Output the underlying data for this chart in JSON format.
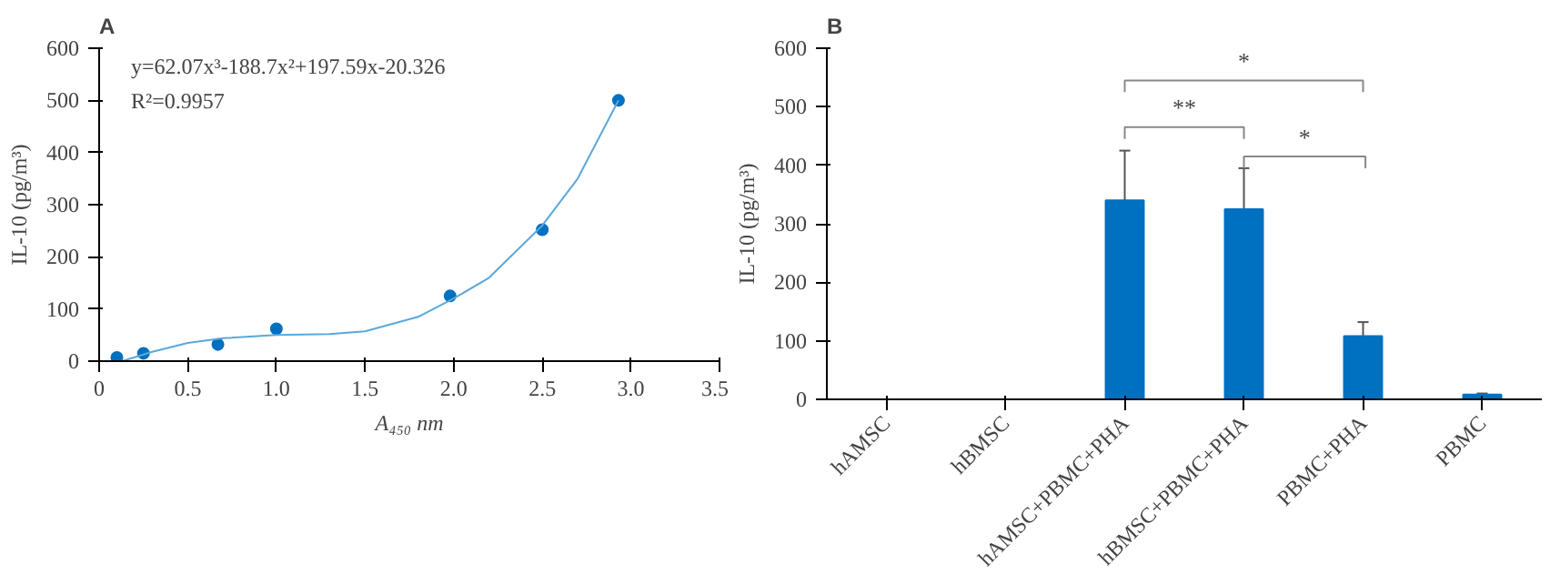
{
  "chart_data": [
    {
      "type": "scatter",
      "title": "A",
      "xlabel": "A₄₅₀ nm",
      "ylabel": "IL-10 (pg/m³)",
      "grid": false,
      "xlim": [
        0,
        3.5
      ],
      "xticks": [
        0,
        0.5,
        {
          "value": 1,
          "label": "1.0"
        },
        1.5,
        {
          "value": 2,
          "label": "2.0"
        },
        2.5,
        {
          "value": 3,
          "label": "3.0"
        },
        3.5
      ],
      "ylim": [
        0,
        600
      ],
      "yticks": [
        0,
        100,
        200,
        300,
        400,
        500,
        600
      ],
      "annotations": [
        "y=62.07x³-188.7x²+197.59x-20.326",
        "R²=0.9957"
      ],
      "series": [
        {
          "type": "scatter",
          "marker": "circle",
          "color": "#0070c0",
          "x": [
            0.1,
            0.25,
            0.67,
            1.0,
            1.98,
            2.5,
            2.93
          ],
          "values": [
            7,
            15,
            32,
            62,
            125,
            252,
            500
          ]
        },
        {
          "type": "line",
          "marker": "none",
          "color": "#5aa8dc",
          "x": [
            0.13,
            0.3,
            0.5,
            0.7,
            1.0,
            1.3,
            1.5,
            1.8,
            2.0,
            2.2,
            2.5,
            2.7,
            2.93
          ],
          "values": [
            0,
            18,
            35,
            44,
            50,
            52,
            57,
            85,
            120,
            160,
            260,
            350,
            500
          ]
        }
      ]
    },
    {
      "type": "bar",
      "title": "B",
      "ylabel": "IL-10 (pg/m³)",
      "grid": false,
      "categories": [
        "hAMSC",
        "hBMSC",
        "hAMSC+PBMC+PHA",
        "hBMSC+PBMC+PHA",
        "PBMC+PHA",
        "PBMC"
      ],
      "ylim": [
        0,
        600
      ],
      "yticks": [
        0,
        100,
        200,
        300,
        400,
        500,
        600
      ],
      "series": [
        {
          "color": "#0070c0",
          "values": [
            0,
            0,
            340,
            325,
            108,
            8
          ],
          "errors": [
            null,
            null,
            85,
            70,
            24,
            2
          ]
        }
      ],
      "annotations": [
        "**",
        "*",
        "*"
      ]
    }
  ]
}
